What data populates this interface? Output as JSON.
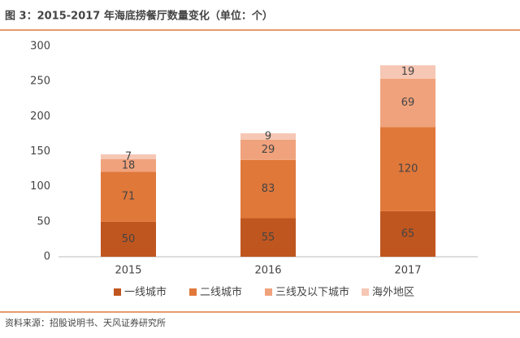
{
  "chart_data": {
    "type": "stacked-bar",
    "title": "图 3：2015-2017 年海底捞餐厅数量变化（单位：个）",
    "source": "资料来源：招股说明书、天风证券研究所",
    "categories": [
      "2015",
      "2016",
      "2017"
    ],
    "series": [
      {
        "name": "一线城市",
        "color": "#c0561f",
        "values": [
          50,
          55,
          65
        ]
      },
      {
        "name": "二线城市",
        "color": "#e0783a",
        "values": [
          71,
          83,
          120
        ]
      },
      {
        "name": "三线及以下城市",
        "color": "#f0a27c",
        "values": [
          18,
          29,
          69
        ]
      },
      {
        "name": "海外地区",
        "color": "#f6c7b4",
        "values": [
          7,
          9,
          19
        ]
      }
    ],
    "ylim": [
      0,
      300
    ],
    "yticks": [
      0,
      50,
      100,
      150,
      200,
      250,
      300
    ],
    "grid": false,
    "legend": "bottom"
  }
}
